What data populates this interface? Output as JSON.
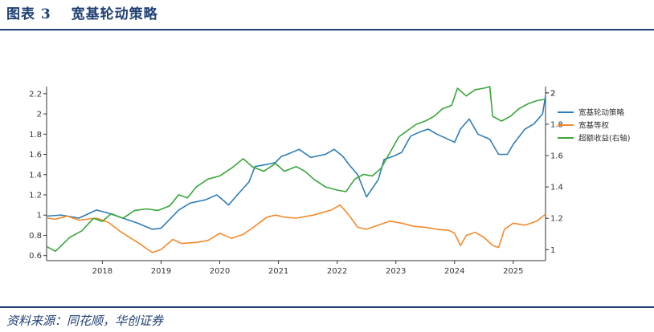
{
  "header": {
    "title": "图表 3　 宽基轮动策略"
  },
  "footer": {
    "source": "资料来源：同花顺，华创证券"
  },
  "colors": {
    "primary": "#1f3f73",
    "strategy": "#2f7db8",
    "equal_weight": "#f28a2c",
    "excess": "#3aa63a"
  },
  "chart_data": {
    "type": "line",
    "title": "宽基轮动策略",
    "xlabel": "",
    "ylabel": "",
    "x_ticks": [
      "2018",
      "2019",
      "2020",
      "2021",
      "2022",
      "2023",
      "2024",
      "2025"
    ],
    "x_range": [
      2017.05,
      2025.55
    ],
    "left_axis": {
      "ylim": [
        0.55,
        2.27
      ],
      "ticks": [
        "0.6",
        "0.8",
        "1",
        "1.2",
        "1.4",
        "1.6",
        "1.8",
        "2",
        "2.2"
      ]
    },
    "right_axis": {
      "ylim": [
        0.93,
        2.04
      ],
      "ticks": [
        "1",
        "1.2",
        "1.4",
        "1.6",
        "1.8",
        "2",
        "2"
      ],
      "label": "右轴"
    },
    "legend_position": "upper-right",
    "grid": false,
    "series": [
      {
        "name": "宽基轮动策略",
        "axis": "left",
        "color_key": "strategy",
        "x": [
          2017.05,
          2017.3,
          2017.6,
          2017.9,
          2018.1,
          2018.35,
          2018.6,
          2018.85,
          2019.0,
          2019.15,
          2019.3,
          2019.5,
          2019.75,
          2019.95,
          2020.15,
          2020.3,
          2020.5,
          2020.6,
          2020.8,
          2020.95,
          2021.05,
          2021.15,
          2021.35,
          2021.55,
          2021.8,
          2021.95,
          2022.1,
          2022.2,
          2022.35,
          2022.5,
          2022.7,
          2022.8,
          2022.95,
          2023.1,
          2023.25,
          2023.4,
          2023.55,
          2023.7,
          2023.85,
          2024.0,
          2024.1,
          2024.25,
          2024.4,
          2024.6,
          2024.75,
          2024.9,
          2025.0,
          2025.2,
          2025.35,
          2025.5,
          2025.55
        ],
        "values": [
          0.99,
          1.0,
          0.97,
          1.05,
          1.02,
          0.97,
          0.92,
          0.86,
          0.87,
          0.96,
          1.05,
          1.12,
          1.15,
          1.2,
          1.1,
          1.2,
          1.33,
          1.48,
          1.5,
          1.52,
          1.58,
          1.6,
          1.65,
          1.57,
          1.6,
          1.65,
          1.58,
          1.5,
          1.4,
          1.18,
          1.35,
          1.55,
          1.58,
          1.62,
          1.78,
          1.82,
          1.85,
          1.8,
          1.76,
          1.72,
          1.85,
          1.95,
          1.8,
          1.75,
          1.6,
          1.6,
          1.7,
          1.85,
          1.9,
          2.0,
          2.18
        ]
      },
      {
        "name": "宽基等权",
        "axis": "left",
        "color_key": "equal_weight",
        "x": [
          2017.05,
          2017.2,
          2017.4,
          2017.6,
          2017.9,
          2018.1,
          2018.3,
          2018.6,
          2018.85,
          2019.0,
          2019.2,
          2019.35,
          2019.6,
          2019.8,
          2020.0,
          2020.2,
          2020.4,
          2020.55,
          2020.8,
          2020.95,
          2021.1,
          2021.3,
          2021.6,
          2021.9,
          2022.05,
          2022.2,
          2022.35,
          2022.5,
          2022.7,
          2022.9,
          2023.1,
          2023.3,
          2023.5,
          2023.7,
          2023.9,
          2024.0,
          2024.1,
          2024.2,
          2024.35,
          2024.5,
          2024.65,
          2024.75,
          2024.85,
          2025.0,
          2025.2,
          2025.4,
          2025.55
        ],
        "values": [
          0.97,
          0.96,
          0.99,
          0.95,
          0.97,
          0.93,
          0.84,
          0.73,
          0.63,
          0.66,
          0.76,
          0.72,
          0.73,
          0.75,
          0.82,
          0.77,
          0.81,
          0.87,
          0.98,
          1.0,
          0.98,
          0.97,
          1.0,
          1.05,
          1.1,
          1.0,
          0.88,
          0.86,
          0.9,
          0.94,
          0.92,
          0.89,
          0.88,
          0.86,
          0.85,
          0.82,
          0.7,
          0.8,
          0.83,
          0.78,
          0.7,
          0.68,
          0.86,
          0.92,
          0.9,
          0.94,
          1.01
        ]
      },
      {
        "name": "超额收益(右轴)",
        "axis": "right",
        "color_key": "excess",
        "x": [
          2017.05,
          2017.2,
          2017.45,
          2017.65,
          2017.85,
          2018.0,
          2018.15,
          2018.35,
          2018.55,
          2018.75,
          2018.95,
          2019.15,
          2019.3,
          2019.45,
          2019.6,
          2019.8,
          2020.0,
          2020.2,
          2020.4,
          2020.55,
          2020.75,
          2020.95,
          2021.1,
          2021.3,
          2021.45,
          2021.6,
          2021.8,
          2022.0,
          2022.15,
          2022.3,
          2022.45,
          2022.6,
          2022.75,
          2022.9,
          2023.05,
          2023.2,
          2023.35,
          2023.5,
          2023.65,
          2023.8,
          2023.95,
          2024.05,
          2024.2,
          2024.35,
          2024.5,
          2024.6,
          2024.65,
          2024.8,
          2024.95,
          2025.1,
          2025.25,
          2025.4,
          2025.55
        ],
        "values": [
          1.02,
          0.99,
          1.08,
          1.12,
          1.2,
          1.18,
          1.23,
          1.2,
          1.25,
          1.26,
          1.25,
          1.28,
          1.35,
          1.33,
          1.4,
          1.45,
          1.47,
          1.52,
          1.58,
          1.53,
          1.5,
          1.55,
          1.5,
          1.53,
          1.5,
          1.45,
          1.4,
          1.38,
          1.37,
          1.45,
          1.48,
          1.47,
          1.52,
          1.62,
          1.72,
          1.76,
          1.8,
          1.82,
          1.85,
          1.9,
          1.92,
          2.03,
          1.98,
          2.02,
          2.03,
          2.04,
          1.85,
          1.82,
          1.85,
          1.9,
          1.93,
          1.95,
          1.96
        ]
      }
    ]
  }
}
